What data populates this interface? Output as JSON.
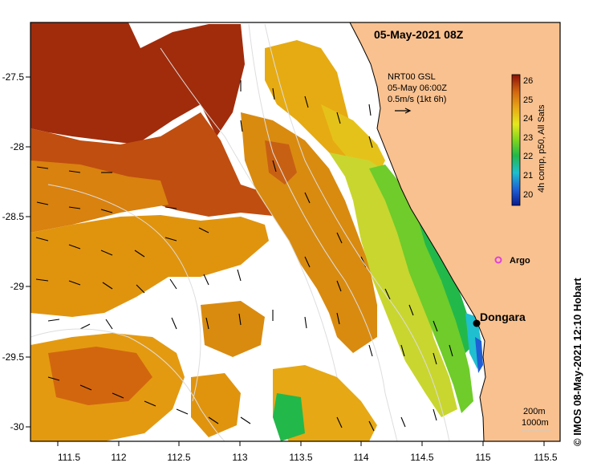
{
  "map": {
    "title": "05-May-2021 08Z",
    "x_ticks": [
      "111.5",
      "112",
      "112.5",
      "113",
      "113.5",
      "114",
      "114.5",
      "115",
      "115.5"
    ],
    "y_ticks": [
      "-27.5",
      "-28",
      "-28.5",
      "-29",
      "-29.5",
      "-30"
    ],
    "current_legend": {
      "line1": "NRT00 GSL",
      "line2": "05-May 06:00Z",
      "line3": "0.5m/s (1kt 6h)"
    },
    "colorbar": {
      "ticks": [
        "26",
        "25",
        "24",
        "23",
        "22",
        "21",
        "20"
      ],
      "label": "4h comp, p50, All Sats"
    },
    "places": {
      "argo": "Argo",
      "dongara": "Dongara"
    },
    "isobath_legend": {
      "line1": "200m",
      "line2": "1000m"
    },
    "credit": "© IMOS 08-May-2021 12:10 Hobart",
    "colors": {
      "land": "#f9c18f",
      "frame": "#000000",
      "argo_marker": "#e040e0"
    }
  }
}
